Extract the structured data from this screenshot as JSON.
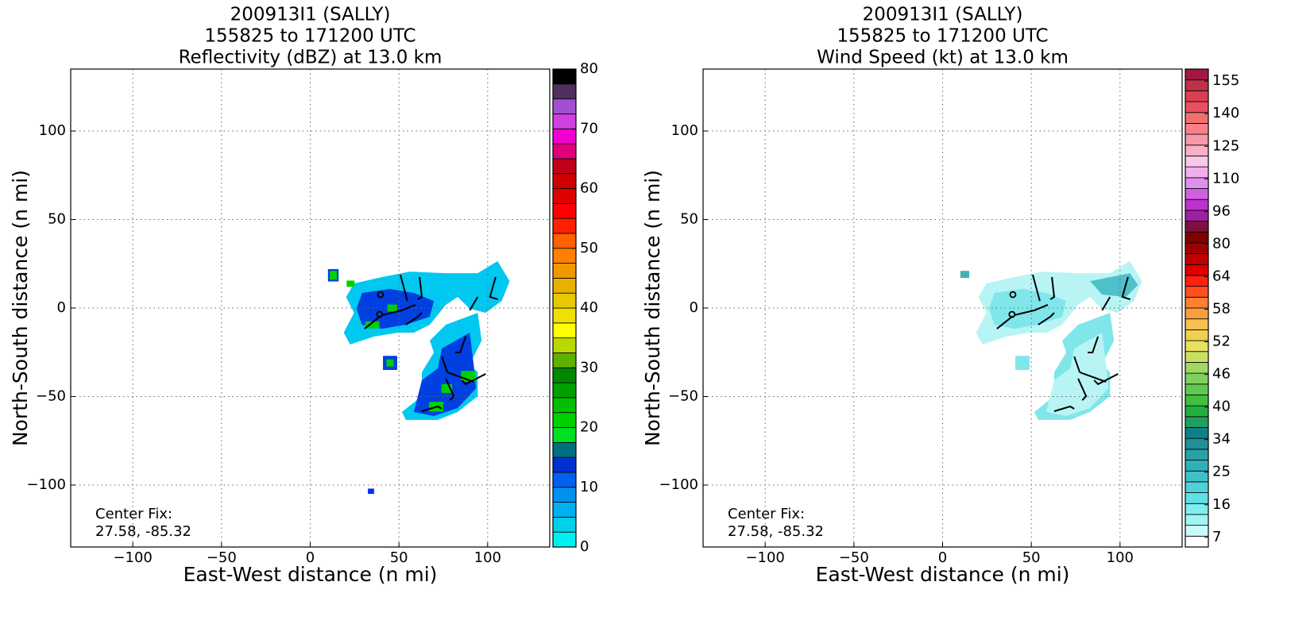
{
  "chart_data": [
    {
      "type": "radar",
      "title": [
        "200913I1 (SALLY)",
        "155825 to 171200 UTC",
        "Reflectivity (dBZ) at 13.0 km"
      ],
      "xlabel": "East-West distance (n mi)",
      "ylabel": "North-South distance (n mi)",
      "xlim": [
        -135,
        135
      ],
      "ylim": [
        -135,
        135
      ],
      "xticks": [
        {
          "value": -100,
          "label": "−100"
        },
        {
          "value": -50,
          "label": "−50"
        },
        0,
        50,
        100
      ],
      "yticks": [
        {
          "value": -100,
          "label": "−100"
        },
        {
          "value": -50,
          "label": "−50"
        },
        0,
        50,
        100
      ],
      "grid": true,
      "annotation": [
        "Center Fix:",
        "27.58, -85.32"
      ],
      "colorbar": {
        "lim": [
          0,
          80
        ],
        "ticks": [
          0,
          10,
          20,
          30,
          40,
          50,
          60,
          70,
          80
        ],
        "colors": [
          "#00f0f0",
          "#00d0e8",
          "#00b0f0",
          "#0090f0",
          "#0060f0",
          "#0030d0",
          "#007080",
          "#00e020",
          "#00d000",
          "#00c000",
          "#00a000",
          "#008800",
          "#60b000",
          "#b8d800",
          "#ffff00",
          "#f0e000",
          "#e8c800",
          "#e8b000",
          "#f09800",
          "#ff8000",
          "#ff6000",
          "#ff2000",
          "#ff0000",
          "#e00000",
          "#d00000",
          "#c00018",
          "#e0007a",
          "#f000d0",
          "#d040e0",
          "#a050d0",
          "#503060",
          "#000000"
        ]
      },
      "echoes": [
        {
          "color": "#00c8f0",
          "x": [
            24.7,
            40.4,
            56.2,
            76.4,
            94.4,
            105.6,
            112.4,
            107.9,
            98.9,
            89.9,
            83.1,
            76.4,
            67.4,
            58.4,
            49.4,
            36.0,
            22.5,
            18.9,
            24.7,
            20.2
          ],
          "y": [
            13.9,
            17.5,
            20.6,
            19.7,
            19.7,
            26.5,
            15.2,
            4.0,
            -2.7,
            -0.4,
            6.3,
            1.8,
            -9.4,
            -13.9,
            -13.9,
            -16.1,
            -20.6,
            -13.9,
            -2.7,
            6.3
          ]
        },
        {
          "color": "#0040e0",
          "x": [
            29.2,
            44.9,
            58.4,
            69.7,
            67.4,
            53.9,
            40.4,
            29.2,
            26.1
          ],
          "y": [
            8.5,
            10.8,
            8.5,
            4.0,
            -4.9,
            -9.4,
            -11.7,
            -9.4,
            -0.4
          ]
        },
        {
          "color": "#00c8f0",
          "x": [
            76.4,
            94.4,
            96.6,
            89.9,
            94.4,
            94.4,
            83.1,
            71.9,
            53.9,
            51.7,
            62.9,
            62.9,
            69.7,
            67.4
          ],
          "y": [
            -9.4,
            -2.7,
            -18.4,
            -31.8,
            -36.3,
            -49.8,
            -58.7,
            -63.2,
            -63.2,
            -58.7,
            -49.8,
            -36.3,
            -25.1,
            -18.4
          ]
        },
        {
          "color": "#0040e0",
          "x": [
            74.2,
            89.9,
            92.1,
            93.5,
            83.1,
            69.7,
            58.4,
            62.9,
            71.9
          ],
          "y": [
            -22.9,
            -13.9,
            -31.8,
            -45.3,
            -56.5,
            -61.0,
            -58.7,
            -40.8,
            -34.1
          ]
        },
        {
          "color": "#0040e0",
          "x": [
            10.0,
            16.0,
            16.0,
            10.0
          ],
          "y": [
            22.0,
            22.0,
            15.0,
            15.0
          ]
        },
        {
          "color": "#00d000",
          "x": [
            11.0,
            15.0,
            15.0,
            11.0
          ],
          "y": [
            21.0,
            21.0,
            16.0,
            16.0
          ]
        },
        {
          "color": "#00d000",
          "x": [
            20.5,
            25.0,
            25.0,
            20.5
          ],
          "y": [
            15.5,
            15.5,
            12.0,
            12.0
          ]
        },
        {
          "color": "#00d000",
          "x": [
            31.0,
            39.0,
            39.0,
            31.0
          ],
          "y": [
            -7.5,
            -7.5,
            -11.5,
            -11.5
          ]
        },
        {
          "color": "#00d000",
          "x": [
            43.5,
            49.0,
            49.0,
            43.5
          ],
          "y": [
            2.0,
            2.0,
            -2.0,
            -2.0
          ]
        },
        {
          "color": "#0040e0",
          "x": [
            41.0,
            49.0,
            49.0,
            41.0
          ],
          "y": [
            -27.0,
            -27.0,
            -35.0,
            -35.0
          ]
        },
        {
          "color": "#00d000",
          "x": [
            43.0,
            47.0,
            47.0,
            43.0
          ],
          "y": [
            -29.0,
            -29.0,
            -33.0,
            -33.0
          ]
        },
        {
          "color": "#00d000",
          "x": [
            85.0,
            93.0,
            93.0,
            85.0
          ],
          "y": [
            -35.5,
            -35.5,
            -41.5,
            -41.5
          ]
        },
        {
          "color": "#00d000",
          "x": [
            67.0,
            75.0,
            75.0,
            67.0
          ],
          "y": [
            -53.0,
            -53.0,
            -58.5,
            -58.5
          ]
        },
        {
          "color": "#00d000",
          "x": [
            74.0,
            80.0,
            80.0,
            74.0
          ],
          "y": [
            -43.0,
            -43.0,
            -48.0,
            -48.0
          ]
        },
        {
          "color": "#0030f0",
          "x": [
            32.5,
            36.0,
            36.0,
            32.5
          ],
          "y": [
            -102.0,
            -102.0,
            -105.0,
            -105.0
          ]
        }
      ],
      "barbs": [
        {
          "x": [
            50.8,
            54.8
          ],
          "y": [
            18.8,
            4.0
          ]
        },
        {
          "x": [
            61.6,
            62.9,
            60.7
          ],
          "y": [
            17.5,
            6.3,
            4.9
          ]
        },
        {
          "x": [
            40.4,
            51.7,
            59.3
          ],
          "y": [
            -4.0,
            -1.3,
            1.8
          ]
        },
        {
          "x": [
            30.6,
            39.6
          ],
          "y": [
            -11.7,
            -4.5
          ]
        },
        {
          "x": [
            53.9,
            60.7,
            62.9
          ],
          "y": [
            -9.4,
            -4.9,
            -2.7
          ]
        },
        {
          "x": [
            94.4,
            89.9
          ],
          "y": [
            6.3,
            -1.3
          ]
        },
        {
          "x": [
            104.5,
            101.3,
            105.8
          ],
          "y": [
            17.5,
            6.3,
            4.9
          ]
        },
        {
          "x": [
            87.6,
            84.5,
            81.8
          ],
          "y": [
            -16.1,
            -25.1,
            -25.1
          ]
        },
        {
          "x": [
            77.3,
            92.1
          ],
          "y": [
            -36.3,
            -41.7
          ]
        },
        {
          "x": [
            76.4,
            80.9,
            78.7
          ],
          "y": [
            -39.9,
            -49.8,
            -52.1
          ]
        },
        {
          "x": [
            74.2,
            77.3
          ],
          "y": [
            -27.4,
            -36.3
          ]
        },
        {
          "x": [
            62.9,
            71.9,
            74.2
          ],
          "y": [
            -58.3,
            -55.6,
            -56.9
          ]
        },
        {
          "x": [
            98.9,
            87.6,
            85.4
          ],
          "y": [
            -37.2,
            -43.0,
            -40.8
          ]
        }
      ],
      "centers": {
        "x": [
          39.6,
          39.1
        ],
        "y": [
          7.6,
          -3.6
        ]
      }
    },
    {
      "type": "radar",
      "title": [
        "200913I1 (SALLY)",
        "155825 to 171200 UTC",
        "Wind Speed (kt) at 13.0 km"
      ],
      "xlabel": "East-West distance (n mi)",
      "ylabel": "North-South distance (n mi)",
      "xlim": [
        -135,
        135
      ],
      "ylim": [
        -135,
        135
      ],
      "xticks": [
        {
          "value": -100,
          "label": "−100"
        },
        {
          "value": -50,
          "label": "−50"
        },
        0,
        50,
        100
      ],
      "yticks": [
        {
          "value": -100,
          "label": "−100"
        },
        {
          "value": -50,
          "label": "−50"
        },
        0,
        50,
        100
      ],
      "grid": true,
      "annotation": [
        "Center Fix:",
        "27.58, -85.32"
      ],
      "colorbar": {
        "ticks": [
          7,
          16,
          25,
          34,
          40,
          46,
          52,
          58,
          64,
          80,
          96,
          110,
          125,
          140,
          155
        ],
        "colors": [
          "#ffffff",
          "#c8fafa",
          "#a0f4f4",
          "#80eeee",
          "#60e0e4",
          "#50d0d8",
          "#40c0c8",
          "#30b0b8",
          "#2aa0a8",
          "#209098",
          "#108088",
          "#20a060",
          "#20b040",
          "#40c040",
          "#60c850",
          "#80d060",
          "#a0d860",
          "#c8e060",
          "#e8e060",
          "#f0d050",
          "#f8c050",
          "#f8a040",
          "#ff8030",
          "#ff5020",
          "#ff2010",
          "#e00000",
          "#c00000",
          "#a00000",
          "#800000",
          "#801040",
          "#a020a0",
          "#c030d0",
          "#d060e0",
          "#e090ec",
          "#f0b0f0",
          "#f8c8e8",
          "#f8b0c8",
          "#f898a8",
          "#f88088",
          "#f07070",
          "#e85060",
          "#d84050",
          "#c03048",
          "#a01840"
        ]
      },
      "echoes": [
        {
          "color": "#b8f4f4",
          "x": [
            24.7,
            40.4,
            56.2,
            76.4,
            94.4,
            105.6,
            112.4,
            107.9,
            98.9,
            89.9,
            83.1,
            76.4,
            67.4,
            58.4,
            49.4,
            36.0,
            22.5,
            18.9,
            24.7,
            20.2
          ],
          "y": [
            13.9,
            17.5,
            20.6,
            19.7,
            19.7,
            26.5,
            15.2,
            4.0,
            -2.7,
            -0.4,
            6.3,
            1.8,
            -9.4,
            -13.9,
            -13.9,
            -16.1,
            -20.6,
            -13.9,
            -2.7,
            6.3
          ]
        },
        {
          "color": "#80e6ea",
          "x": [
            29.2,
            44.9,
            58.4,
            69.7,
            67.4,
            53.9,
            40.4,
            29.2,
            26.1
          ],
          "y": [
            8.5,
            10.8,
            8.5,
            4.0,
            -4.9,
            -9.4,
            -11.7,
            -9.4,
            -0.4
          ]
        },
        {
          "color": "#50c0c8",
          "x": [
            83.1,
            105.6,
            110.1,
            103.4,
            89.9
          ],
          "y": [
            15.2,
            19.7,
            13.0,
            6.3,
            7.6
          ]
        },
        {
          "color": "#80e6ea",
          "x": [
            76.4,
            94.4,
            96.6,
            89.9,
            94.4,
            94.4,
            83.1,
            71.9,
            53.9,
            51.7,
            62.9,
            62.9,
            69.7,
            67.4
          ],
          "y": [
            -9.4,
            -2.7,
            -18.4,
            -31.8,
            -36.3,
            -49.8,
            -58.7,
            -63.2,
            -63.2,
            -58.7,
            -49.8,
            -36.3,
            -25.1,
            -18.4
          ]
        },
        {
          "color": "#b8f4f4",
          "x": [
            74.2,
            89.9,
            92.1,
            93.5,
            83.1,
            69.7,
            58.4,
            62.9,
            71.9
          ],
          "y": [
            -22.9,
            -13.9,
            -31.8,
            -45.3,
            -56.5,
            -61.0,
            -58.7,
            -40.8,
            -34.1
          ]
        },
        {
          "color": "#40b0b8",
          "x": [
            10.0,
            15.0,
            15.0,
            10.0
          ],
          "y": [
            21.0,
            21.0,
            17.0,
            17.0
          ]
        },
        {
          "color": "#80e6ea",
          "x": [
            41.0,
            49.0,
            49.0,
            41.0
          ],
          "y": [
            -27.0,
            -27.0,
            -35.0,
            -35.0
          ]
        }
      ],
      "barbs": [
        {
          "x": [
            50.8,
            54.8
          ],
          "y": [
            18.8,
            4.0
          ]
        },
        {
          "x": [
            61.6,
            62.9,
            60.7
          ],
          "y": [
            17.5,
            6.3,
            4.9
          ]
        },
        {
          "x": [
            40.4,
            51.7,
            59.3
          ],
          "y": [
            -4.0,
            -1.3,
            1.8
          ]
        },
        {
          "x": [
            30.6,
            39.6
          ],
          "y": [
            -11.7,
            -4.5
          ]
        },
        {
          "x": [
            53.9,
            60.7,
            62.9
          ],
          "y": [
            -9.4,
            -4.9,
            -2.7
          ]
        },
        {
          "x": [
            94.4,
            89.9
          ],
          "y": [
            6.3,
            -1.3
          ]
        },
        {
          "x": [
            104.5,
            101.3,
            105.8
          ],
          "y": [
            17.5,
            6.3,
            4.9
          ]
        },
        {
          "x": [
            87.6,
            84.5,
            81.8
          ],
          "y": [
            -16.1,
            -25.1,
            -25.1
          ]
        },
        {
          "x": [
            77.3,
            92.1
          ],
          "y": [
            -36.3,
            -41.7
          ]
        },
        {
          "x": [
            76.4,
            80.9,
            78.7
          ],
          "y": [
            -39.9,
            -49.8,
            -52.1
          ]
        },
        {
          "x": [
            74.2,
            77.3
          ],
          "y": [
            -27.4,
            -36.3
          ]
        },
        {
          "x": [
            62.9,
            71.9,
            74.2
          ],
          "y": [
            -58.3,
            -55.6,
            -56.9
          ]
        },
        {
          "x": [
            98.9,
            87.6,
            85.4
          ],
          "y": [
            -37.2,
            -43.0,
            -40.8
          ]
        }
      ],
      "centers": {
        "x": [
          39.6,
          39.1
        ],
        "y": [
          7.6,
          -3.6
        ]
      }
    }
  ]
}
